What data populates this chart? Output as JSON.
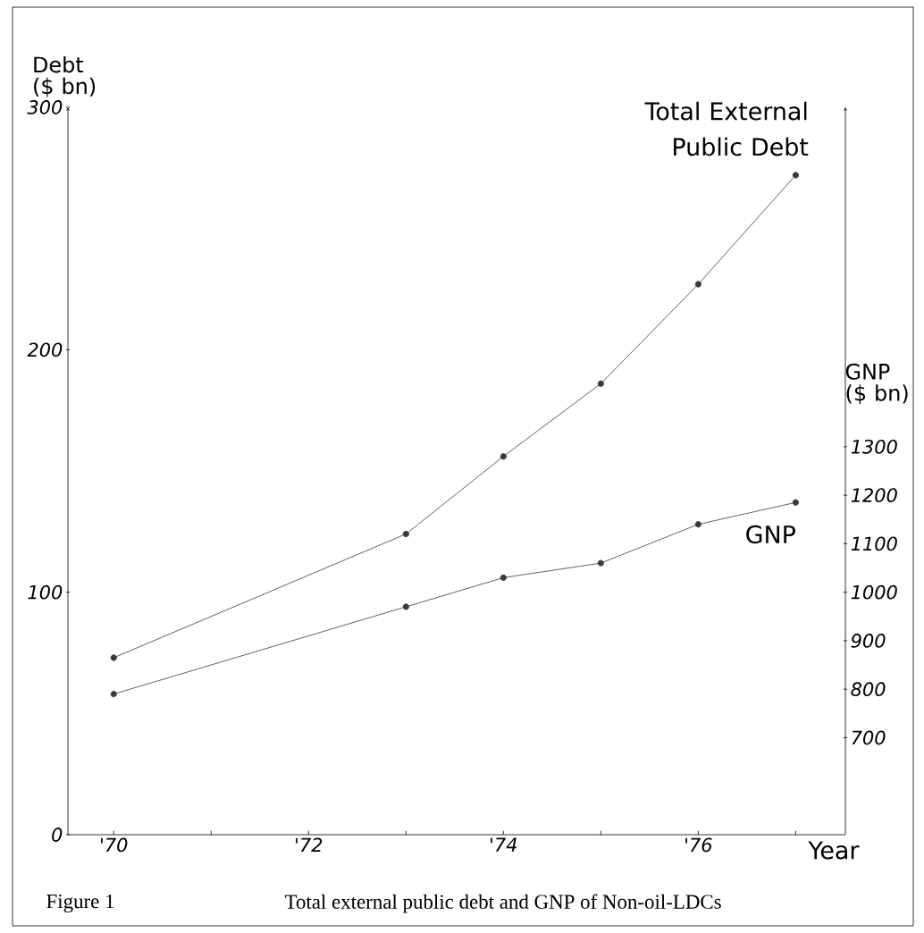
{
  "chart_data": {
    "type": "line",
    "xlabel": "Year",
    "ylabel": "Debt ($ bn)",
    "y2label": "GNP ($ bn)",
    "x": [
      1970,
      1973,
      1974,
      1975,
      1976,
      1977
    ],
    "xlim": [
      1969.53,
      1977.51
    ],
    "xticks": [
      {
        "value": 1970,
        "label": "'70"
      },
      {
        "value": 1971,
        "label": null
      },
      {
        "value": 1972,
        "label": "'72"
      },
      {
        "value": 1973,
        "label": null
      },
      {
        "value": 1974,
        "label": "'74"
      },
      {
        "value": 1975,
        "label": null
      },
      {
        "value": 1976,
        "label": "'76"
      },
      {
        "value": 1977,
        "label": null
      }
    ],
    "ylim": [
      0,
      300
    ],
    "yticks": [
      0,
      100,
      200,
      300
    ],
    "y2lim": [
      500,
      2000
    ],
    "y2ticks": [
      700,
      800,
      900,
      1000,
      1100,
      1200,
      1300
    ],
    "marker": "circle",
    "line_style": "solid",
    "grid": false,
    "series": [
      {
        "name": "Total External Public Debt",
        "color": "#3a3a3a",
        "values": [
          73,
          124,
          156,
          186,
          227,
          272
        ]
      },
      {
        "name": "GNP",
        "color": "#3a3a3a",
        "axis": "y2",
        "values": [
          790,
          970,
          1030,
          1060,
          1140,
          1185
        ]
      }
    ],
    "annotations": [
      "Figure 1",
      "Total external public debt and GNP of Non-oil-LDCs"
    ]
  }
}
